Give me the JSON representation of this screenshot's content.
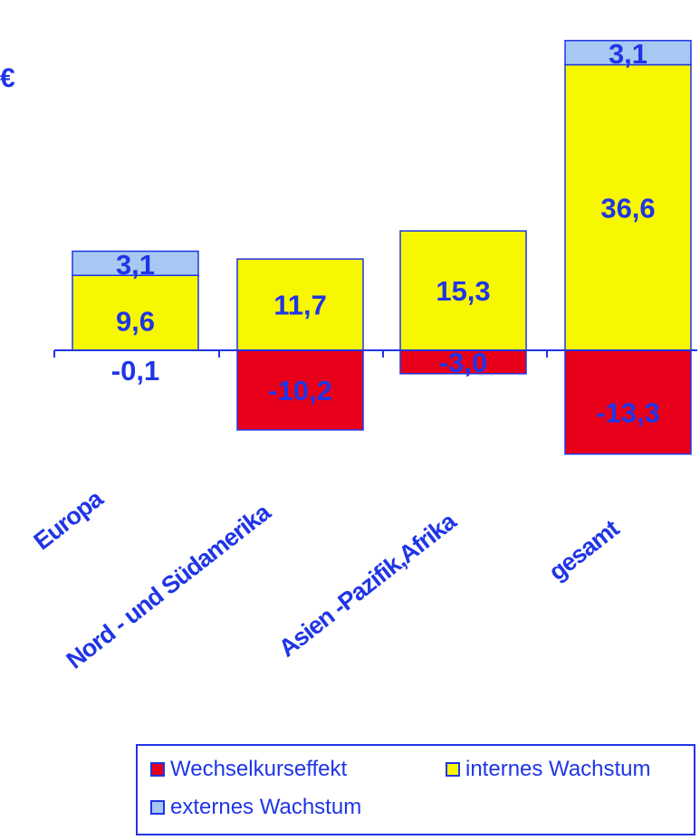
{
  "unit_label": "€",
  "colors": {
    "text": "#1f35e6",
    "axis": "#1f35e6",
    "wechselkurs": "#e8001a",
    "intern": "#f7f700",
    "extern": "#a6c8f2"
  },
  "chart_data": {
    "type": "bar",
    "stacked": true,
    "categories": [
      "Europa",
      "Nord - und Südamerika",
      "Asien -Pazifik,Afrika",
      "gesamt"
    ],
    "series": [
      {
        "name": "Wechselkurseffekt",
        "values": [
          -0.1,
          -10.2,
          -3.0,
          -13.3
        ],
        "labels": [
          "-0,1",
          "-10,2",
          "-3,0",
          "-13,3"
        ]
      },
      {
        "name": "internes Wachstum",
        "values": [
          9.6,
          11.7,
          15.3,
          36.6
        ],
        "labels": [
          "9,6",
          "11,7",
          "15,3",
          "36,6"
        ]
      },
      {
        "name": "externes Wachstum",
        "values": [
          3.1,
          0,
          0,
          3.1
        ],
        "labels": [
          "3,1",
          "",
          "",
          "3,1"
        ]
      }
    ],
    "legend_position": "bottom-right",
    "grid": false
  },
  "legend": {
    "items": [
      {
        "label": "Wechselkurseffekt",
        "color_key": "wechselkurs"
      },
      {
        "label": "internes Wachstum",
        "color_key": "intern"
      },
      {
        "label": "externes Wachstum",
        "color_key": "extern"
      }
    ]
  }
}
